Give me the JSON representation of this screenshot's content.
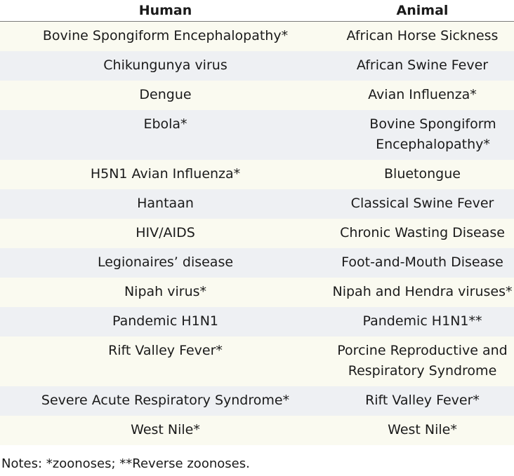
{
  "table": {
    "headers": {
      "human": "Human",
      "animal": "Animal"
    },
    "rows": [
      {
        "human": "Bovine Spongiform Encephalopathy*",
        "animal": "African Horse Sickness"
      },
      {
        "human": "Chikungunya virus",
        "animal": "African Swine Fever"
      },
      {
        "human": "Dengue",
        "animal": "Avian Influenza*"
      },
      {
        "human": "Ebola*",
        "animal": "Bovine Spongiform Encephalopathy*"
      },
      {
        "human": "H5N1 Avian Influenza*",
        "animal": "Bluetongue"
      },
      {
        "human": "Hantaan",
        "animal": "Classical Swine Fever"
      },
      {
        "human": "HIV/AIDS",
        "animal": "Chronic Wasting Disease"
      },
      {
        "human": "Legionaires’ disease",
        "animal": "Foot-and-Mouth Disease"
      },
      {
        "human": "Nipah virus*",
        "animal": "Nipah and Hendra viruses*"
      },
      {
        "human": "Pandemic H1N1",
        "animal": "Pandemic H1N1**"
      },
      {
        "human": "Rift Valley Fever*",
        "animal": "Porcine Reproductive and Respiratory Syndrome"
      },
      {
        "human": "Severe Acute Respiratory Syndrome*",
        "animal": "Rift Valley Fever*"
      },
      {
        "human": "West Nile*",
        "animal": "West Nile*"
      }
    ]
  },
  "notes": "Notes: *zoonoses; **Reverse zoonoses."
}
